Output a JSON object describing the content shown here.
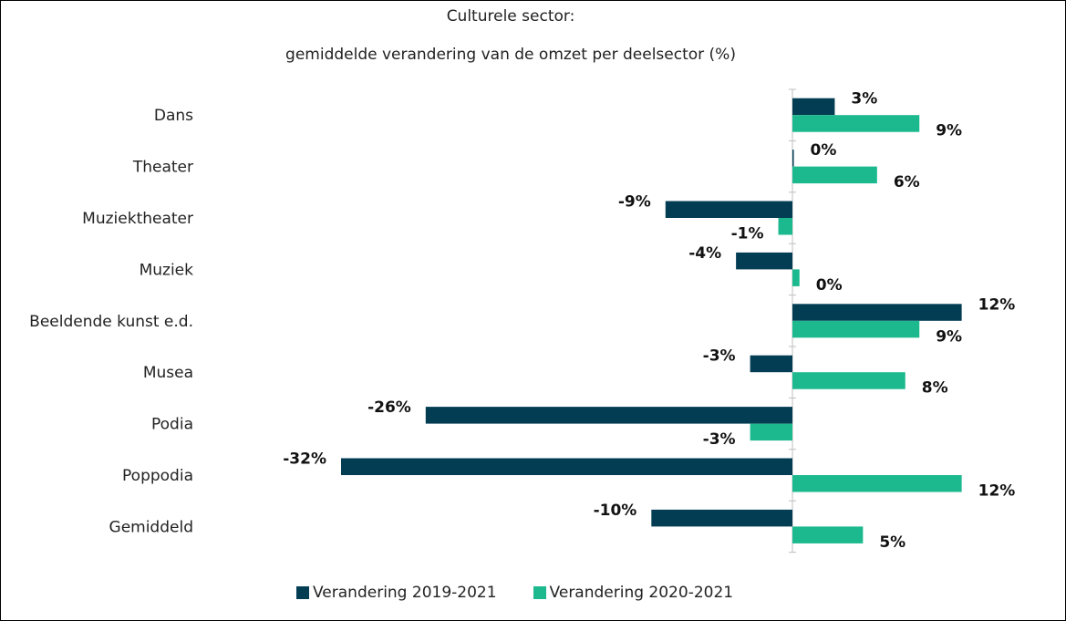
{
  "chart_data": {
    "type": "bar",
    "orientation": "horizontal",
    "title_line1": "Culturele sector:",
    "title_line2": "gemiddelde verandering van de omzet per deelsector (%)",
    "categories": [
      "Dans",
      "Theater",
      "Muziektheater",
      "Muziek",
      "Beeldende kunst e.d.",
      "Musea",
      "Podia",
      "Poppodia",
      "Gemiddeld"
    ],
    "series": [
      {
        "name": "Verandering 2019-2021",
        "color": "#033d54",
        "values": [
          3,
          0,
          -9,
          -4,
          12,
          -3,
          -26,
          -32,
          -10
        ],
        "labels": [
          "3%",
          "0%",
          "-9%",
          "-4%",
          "12%",
          "-3%",
          "-26%",
          "-32%",
          "-10%"
        ]
      },
      {
        "name": "Verandering 2020-2021",
        "color": "#1bb98d",
        "values": [
          9,
          6,
          -1,
          0.5,
          9,
          8,
          -3,
          12,
          5
        ],
        "labels": [
          "9%",
          "6%",
          "-1%",
          "0%",
          "9%",
          "8%",
          "-3%",
          "12%",
          "5%"
        ]
      }
    ],
    "xlim": [
      -32,
      12
    ],
    "grid": false,
    "legend_position": "bottom"
  }
}
